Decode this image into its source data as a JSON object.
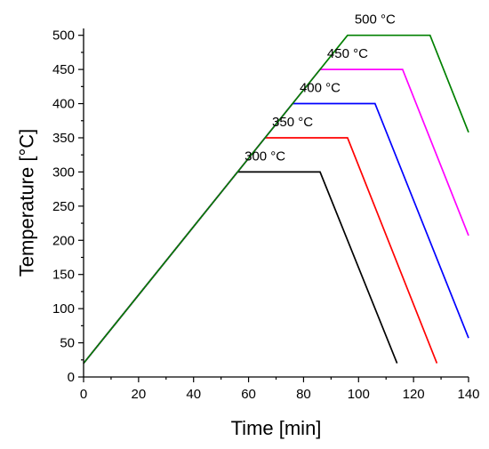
{
  "chart_data": {
    "type": "line",
    "xlabel": "Time [min]",
    "ylabel": "Temperature [°C]",
    "xlim": [
      0,
      140
    ],
    "ylim": [
      0,
      510
    ],
    "xticks": [
      0,
      20,
      40,
      60,
      80,
      100,
      120,
      140
    ],
    "yticks": [
      0,
      50,
      100,
      150,
      200,
      250,
      300,
      350,
      400,
      450,
      500
    ],
    "grid": false,
    "legend": "none",
    "series": [
      {
        "color": "#000000",
        "points": [
          [
            0,
            20
          ],
          [
            56,
            300
          ],
          [
            86,
            300
          ],
          [
            114,
            20
          ]
        ]
      },
      {
        "color": "#ff0000",
        "points": [
          [
            0,
            20
          ],
          [
            66,
            350
          ],
          [
            96,
            350
          ],
          [
            128.5,
            20
          ]
        ]
      },
      {
        "color": "#0000ff",
        "points": [
          [
            0,
            20
          ],
          [
            76,
            400
          ],
          [
            106,
            400
          ],
          [
            140,
            57
          ]
        ]
      },
      {
        "color": "#ff00ff",
        "points": [
          [
            0,
            20
          ],
          [
            86,
            450
          ],
          [
            116,
            450
          ],
          [
            140,
            207
          ]
        ]
      },
      {
        "color": "#008000",
        "points": [
          [
            0,
            20
          ],
          [
            96,
            500
          ],
          [
            126,
            500
          ],
          [
            140,
            358
          ]
        ]
      }
    ],
    "annotations": [
      {
        "text": "300 °C",
        "x": 66,
        "y": 317
      },
      {
        "text": "350 °C",
        "x": 76,
        "y": 367
      },
      {
        "text": "400 °C",
        "x": 86,
        "y": 417
      },
      {
        "text": "450 °C",
        "x": 96,
        "y": 467
      },
      {
        "text": "500 °C",
        "x": 106,
        "y": 517
      }
    ]
  }
}
